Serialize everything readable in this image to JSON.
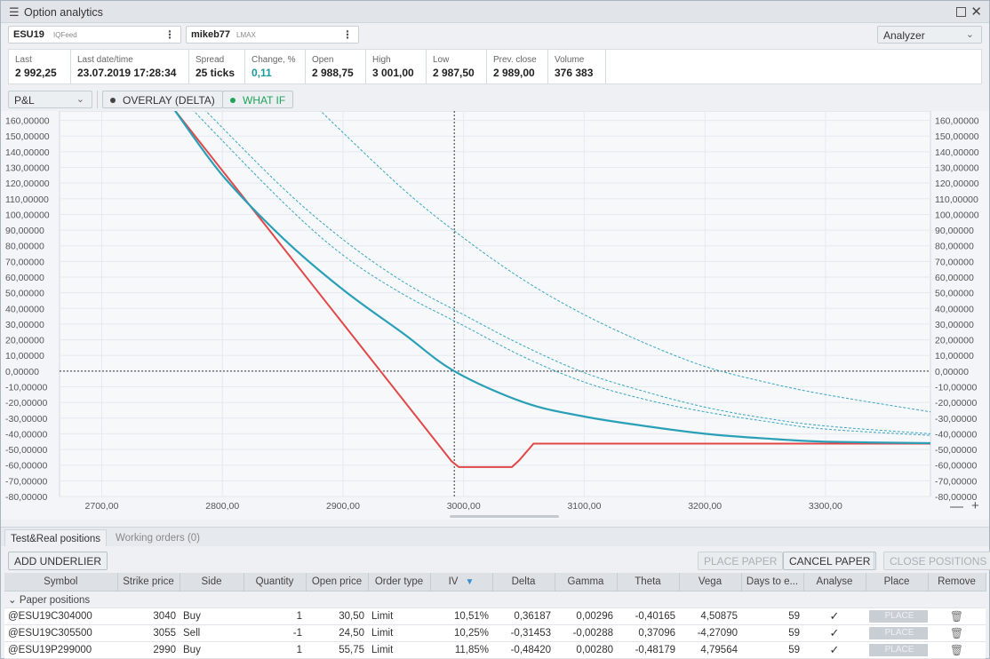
{
  "window": {
    "title": "Option analytics"
  },
  "symbols": [
    {
      "name": "ESU19",
      "feed": "IQFeed"
    },
    {
      "name": "mikeb77",
      "feed": "LMAX"
    }
  ],
  "analyzer_select": "Analyzer",
  "stats": [
    {
      "label": "Last",
      "value": "2 992,25"
    },
    {
      "label": "Last date/time",
      "value": "23.07.2019 17:28:34"
    },
    {
      "label": "Spread",
      "value": "25 ticks"
    },
    {
      "label": "Change, %",
      "value": "0,11"
    },
    {
      "label": "Open",
      "value": "2 988,75"
    },
    {
      "label": "High",
      "value": "3 001,00"
    },
    {
      "label": "Low",
      "value": "2 987,50"
    },
    {
      "label": "Prev. close",
      "value": "2 989,00"
    },
    {
      "label": "Volume",
      "value": "376 383"
    }
  ],
  "toolbar": {
    "mode_select": "P&L",
    "overlay_label": "OVERLAY (DELTA)",
    "whatif_label": "WHAT IF",
    "overlay_dot_color": "#444444",
    "whatif_dot_color": "#1fa35a"
  },
  "chart_data": {
    "type": "line",
    "x_tick_labels": [
      "2700,00",
      "2800,00",
      "2900,00",
      "3000,00",
      "3100,00",
      "3200,00",
      "3300,00"
    ],
    "x_ticks": [
      2700,
      2800,
      2900,
      3000,
      3100,
      3200,
      3300
    ],
    "y_tick_labels": [
      "160,00000",
      "150,00000",
      "140,00000",
      "130,00000",
      "120,00000",
      "110,00000",
      "100,00000",
      "90,00000",
      "80,00000",
      "70,00000",
      "60,00000",
      "50,00000",
      "40,00000",
      "30,00000",
      "20,00000",
      "10,00000",
      "0,00000",
      "-10,00000",
      "-20,00000",
      "-30,00000",
      "-40,00000",
      "-50,00000",
      "-60,00000",
      "-70,00000",
      "-80,00000"
    ],
    "y_ticks": [
      160,
      150,
      140,
      130,
      120,
      110,
      100,
      90,
      80,
      70,
      60,
      50,
      40,
      30,
      20,
      10,
      0,
      -10,
      -20,
      -30,
      -40,
      -50,
      -60,
      -70,
      -80
    ],
    "xlim": [
      2665,
      3387
    ],
    "ylim": [
      -80,
      166
    ],
    "crosshair": {
      "x": 2992.25,
      "y": 0
    },
    "colors": {
      "expiry": "#e04848",
      "current": "#2aa0b8",
      "whatif": "#3aa6c0"
    },
    "series": [
      {
        "style": "expiry",
        "points": [
          [
            2760,
            167
          ],
          [
            2990,
            -57.5
          ],
          [
            2996,
            -61.25
          ],
          [
            3040,
            -61.25
          ],
          [
            3046,
            -57
          ],
          [
            3058,
            -46.25
          ],
          [
            3387,
            -46.25
          ]
        ]
      },
      {
        "style": "current",
        "points": [
          [
            2760,
            167
          ],
          [
            2800,
            125
          ],
          [
            2850,
            85
          ],
          [
            2900,
            52
          ],
          [
            2950,
            24
          ],
          [
            2992.25,
            0
          ],
          [
            3050,
            -20
          ],
          [
            3100,
            -29
          ],
          [
            3150,
            -35
          ],
          [
            3200,
            -40
          ],
          [
            3250,
            -43
          ],
          [
            3300,
            -45
          ],
          [
            3387,
            -46
          ]
        ]
      },
      {
        "style": "whatif",
        "points": [
          [
            2775,
            167
          ],
          [
            2850,
            108
          ],
          [
            2900,
            74
          ],
          [
            2950,
            49
          ],
          [
            3000,
            29
          ],
          [
            3050,
            9
          ],
          [
            3100,
            -7
          ],
          [
            3150,
            -18
          ],
          [
            3200,
            -26
          ],
          [
            3250,
            -32
          ],
          [
            3300,
            -37
          ],
          [
            3387,
            -41
          ]
        ]
      },
      {
        "style": "whatif",
        "points": [
          [
            2785,
            167
          ],
          [
            2850,
            117
          ],
          [
            2900,
            84
          ],
          [
            2950,
            57
          ],
          [
            3000,
            36
          ],
          [
            3050,
            16
          ],
          [
            3100,
            -1
          ],
          [
            3150,
            -13
          ],
          [
            3200,
            -23
          ],
          [
            3250,
            -30
          ],
          [
            3300,
            -35
          ],
          [
            3387,
            -40
          ]
        ]
      },
      {
        "style": "whatif",
        "points": [
          [
            2880,
            167
          ],
          [
            2950,
            116
          ],
          [
            3000,
            85
          ],
          [
            3050,
            58
          ],
          [
            3100,
            36
          ],
          [
            3150,
            18
          ],
          [
            3200,
            3
          ],
          [
            3250,
            -7
          ],
          [
            3300,
            -15
          ],
          [
            3387,
            -26
          ]
        ]
      }
    ]
  },
  "tabs": [
    {
      "label": "Test&Real positions",
      "active": true
    },
    {
      "label": "Working orders (0)",
      "active": false
    }
  ],
  "buttons": {
    "add_underlier": "ADD UNDERLIER",
    "place_paper": "PLACE PAPER",
    "cancel_paper": "CANCEL PAPER",
    "close_positions": "CLOSE POSITIONS"
  },
  "table": {
    "columns": [
      "Symbol",
      "Strike price",
      "Side",
      "Quantity",
      "Open price",
      "Order type",
      "IV",
      "Delta",
      "Gamma",
      "Theta",
      "Vega",
      "Days to e...",
      "Analyse",
      "Place",
      "Remove"
    ],
    "group_label": "Paper positions",
    "place_label": "PLACE",
    "rows": [
      {
        "symbol": "@ESU19C304000",
        "strike": "3040",
        "side": "Buy",
        "qty": "1",
        "open": "30,50",
        "type": "Limit",
        "iv": "10,51%",
        "delta": "0,36187",
        "gamma": "0,00296",
        "theta": "-0,40165",
        "vega": "4,50875",
        "days": "59"
      },
      {
        "symbol": "@ESU19C305500",
        "strike": "3055",
        "side": "Sell",
        "qty": "-1",
        "open": "24,50",
        "type": "Limit",
        "iv": "10,25%",
        "delta": "-0,31453",
        "gamma": "-0,00288",
        "theta": "0,37096",
        "vega": "-4,27090",
        "days": "59"
      },
      {
        "symbol": "@ESU19P299000",
        "strike": "2990",
        "side": "Buy",
        "qty": "1",
        "open": "55,75",
        "type": "Limit",
        "iv": "11,85%",
        "delta": "-0,48420",
        "gamma": "0,00280",
        "theta": "-0,48179",
        "vega": "4,79564",
        "days": "59"
      }
    ]
  }
}
